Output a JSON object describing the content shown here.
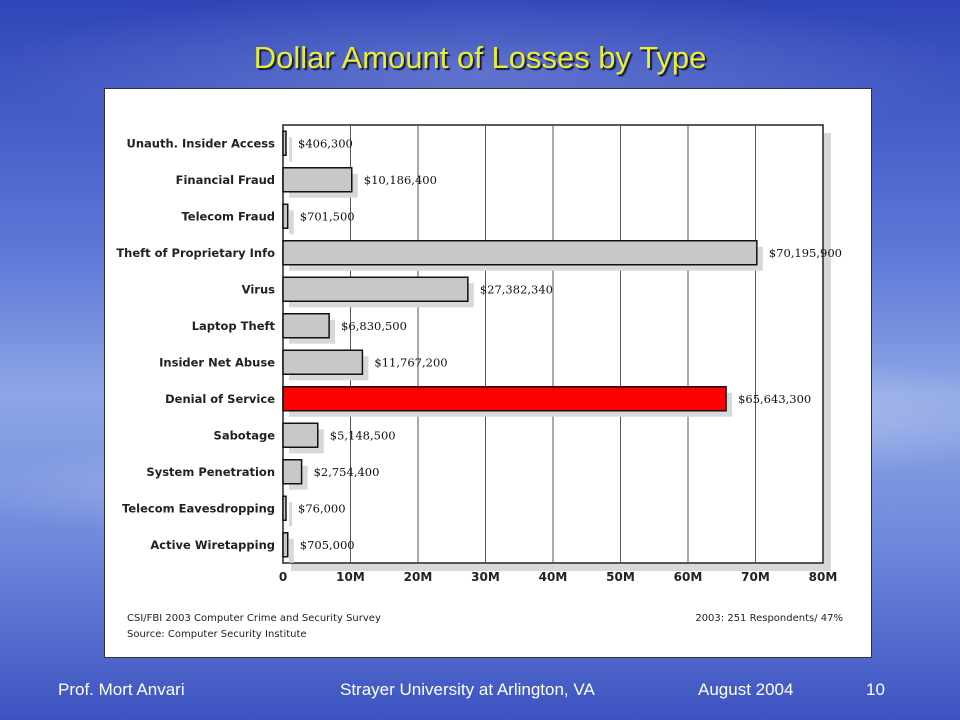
{
  "slide": {
    "title": "Dollar Amount of Losses by Type",
    "footer": {
      "author": "Prof. Mort Anvari",
      "institution": "Strayer University at Arlington, VA",
      "date": "August 2004",
      "page": "10"
    }
  },
  "chart_data": {
    "type": "bar",
    "orientation": "horizontal",
    "categories": [
      "Unauth. Insider Access",
      "Financial Fraud",
      "Telecom Fraud",
      "Theft of Proprietary Info",
      "Virus",
      "Laptop Theft",
      "Insider Net Abuse",
      "Denial of Service",
      "Sabotage",
      "System Penetration",
      "Telecom Eavesdropping",
      "Active Wiretapping"
    ],
    "values": [
      406300,
      10186400,
      701500,
      70195900,
      27382340,
      6830500,
      11767200,
      65643300,
      5148500,
      2754400,
      76000,
      705000
    ],
    "value_labels": [
      "$406,300",
      "$10,186,400",
      "$701,500",
      "$70,195,900",
      "$27,382,340",
      "$6,830,500",
      "$11,767,200",
      "$65,643,300",
      "$5,148,500",
      "$2,754,400",
      "$76,000",
      "$705,000"
    ],
    "highlight_index": 7,
    "xlim": [
      0,
      80000000
    ],
    "ticks": [
      0,
      10000000,
      20000000,
      30000000,
      40000000,
      50000000,
      60000000,
      70000000,
      80000000
    ],
    "tick_labels": [
      "0",
      "10M",
      "20M",
      "30M",
      "40M",
      "50M",
      "60M",
      "70M",
      "80M"
    ],
    "grid": true,
    "colors": {
      "bar": "#c8c8c8",
      "highlight": "#ff0000",
      "shadow": "#d8d8d8"
    },
    "source_lines": [
      "CSI/FBI 2003 Computer Crime and Security Survey",
      "Source: Computer Security Institute"
    ],
    "respondents_note": "2003: 251 Respondents/ 47%"
  }
}
